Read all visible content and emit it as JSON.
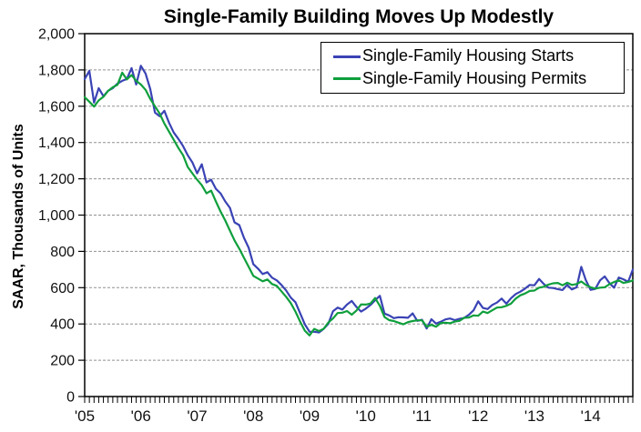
{
  "title": "Single-Family Building Moves Up Modestly",
  "y_axis": {
    "label": "SAAR, Thousands of Units",
    "min": 0,
    "max": 2000,
    "step": 200,
    "tick_labels": [
      "0",
      "200",
      "400",
      "600",
      "800",
      "1,000",
      "1,200",
      "1,400",
      "1,600",
      "1,800",
      "2,000"
    ]
  },
  "x_axis": {
    "year_labels": [
      "'05",
      "'06",
      "'07",
      "'08",
      "'09",
      "'10",
      "'11",
      "'12",
      "'13",
      "'14"
    ],
    "minor_ticks": "monthly"
  },
  "legend": {
    "position": "top-right-inside",
    "items": [
      {
        "label": "Single-Family Housing Starts",
        "color": "#3a43b4"
      },
      {
        "label": "Single-Family Housing Permits",
        "color": "#0f9f3c"
      }
    ]
  },
  "colors": {
    "starts_line": "#3a43b4",
    "permits_line": "#0f9f3c",
    "gridline": "#909090",
    "axis": "#000000",
    "background": "#ffffff"
  },
  "chart_data": {
    "type": "line",
    "title": "Single-Family Building Moves Up Modestly",
    "xlabel": "",
    "ylabel": "SAAR, Thousands of Units",
    "ylim": [
      0,
      2000
    ],
    "ytick_step": 200,
    "grid": "horizontal-dotted",
    "legend_position": "top-right-inside",
    "x_frequency": "monthly",
    "x_start": "2005-01",
    "x_end": "2014-10",
    "x_year_tick_labels": [
      "'05",
      "'06",
      "'07",
      "'08",
      "'09",
      "'10",
      "'11",
      "'12",
      "'13",
      "'14"
    ],
    "series": [
      {
        "name": "Single-Family Housing Starts",
        "color": "#3a43b4",
        "values": [
          1750,
          1795,
          1620,
          1700,
          1655,
          1685,
          1700,
          1725,
          1740,
          1750,
          1810,
          1720,
          1823,
          1780,
          1695,
          1565,
          1545,
          1575,
          1510,
          1455,
          1420,
          1380,
          1330,
          1290,
          1230,
          1280,
          1180,
          1195,
          1145,
          1120,
          1075,
          1040,
          960,
          945,
          875,
          820,
          730,
          705,
          675,
          685,
          655,
          640,
          615,
          585,
          545,
          520,
          458,
          398,
          357,
          357,
          353,
          373,
          401,
          470,
          490,
          479,
          507,
          527,
          494,
          468,
          484,
          505,
          531,
          555,
          457,
          447,
          432,
          437,
          436,
          434,
          458,
          417,
          423,
          375,
          426,
          402,
          412,
          425,
          430,
          421,
          428,
          433,
          450,
          475,
          525,
          488,
          482,
          505,
          518,
          540,
          512,
          542,
          565,
          578,
          595,
          615,
          613,
          648,
          620,
          600,
          598,
          592,
          587,
          615,
          590,
          602,
          715,
          640,
          588,
          593,
          640,
          662,
          625,
          600,
          656,
          646,
          632,
          700
        ]
      },
      {
        "name": "Single-Family Housing Permits",
        "color": "#0f9f3c",
        "values": [
          1650,
          1625,
          1598,
          1632,
          1652,
          1684,
          1705,
          1718,
          1785,
          1748,
          1772,
          1740,
          1720,
          1690,
          1640,
          1600,
          1560,
          1505,
          1460,
          1415,
          1370,
          1330,
          1265,
          1230,
          1195,
          1165,
          1120,
          1135,
          1075,
          1020,
          970,
          915,
          860,
          815,
          765,
          715,
          665,
          650,
          635,
          645,
          620,
          610,
          580,
          550,
          515,
          468,
          412,
          363,
          337,
          373,
          361,
          373,
          408,
          430,
          460,
          462,
          471,
          451,
          473,
          508,
          507,
          513,
          543,
          500,
          438,
          421,
          416,
          407,
          398,
          410,
          416,
          420,
          420,
          385,
          395,
          385,
          405,
          407,
          404,
          413,
          417,
          434,
          435,
          447,
          445,
          468,
          460,
          475,
          490,
          492,
          500,
          512,
          540,
          558,
          568,
          582,
          584,
          600,
          605,
          617,
          624,
          626,
          613,
          627,
          615,
          620,
          634,
          615,
          602,
          595,
          600,
          602,
          619,
          631,
          640,
          626,
          631,
          640
        ]
      }
    ]
  }
}
